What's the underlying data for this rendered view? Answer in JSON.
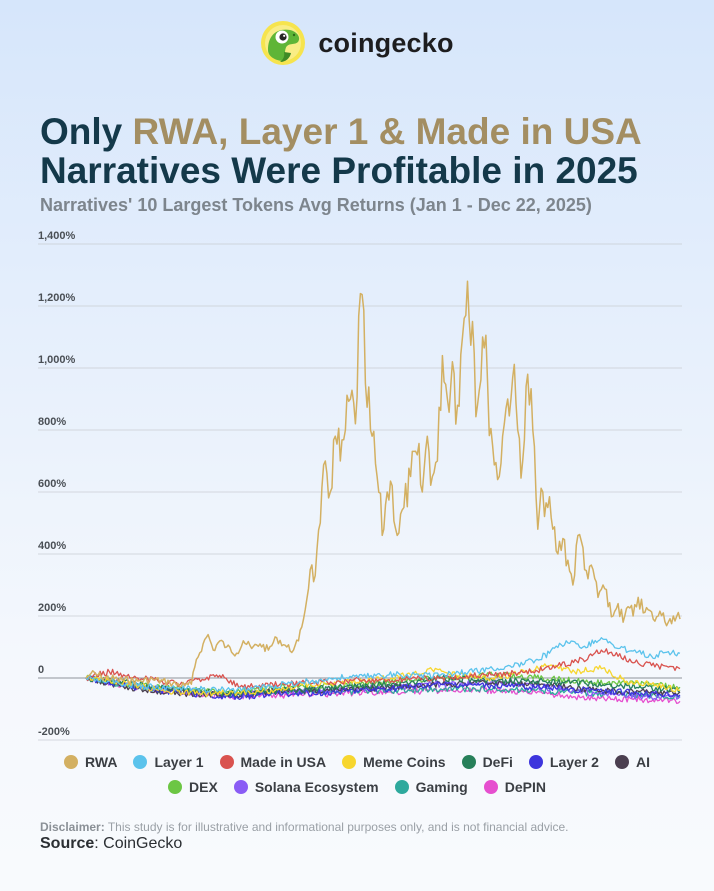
{
  "brand": {
    "name": "coingecko",
    "logo": "gecko-logo-icon"
  },
  "title": {
    "prefix": "Only ",
    "highlight": "RWA, Layer 1 & Made in USA",
    "line2": "Narratives Were Profitable in 2025"
  },
  "footer": {
    "disclaimer_label": "Disclaimer:",
    "disclaimer_text": " This study is for illustrative and informational purposes only, and is not financial advice.",
    "source_label": "Source",
    "source_text": ": CoinGecko"
  },
  "colors": {
    "title": "#14394a",
    "highlight": "#a38e62",
    "subtitle": "#7d858d"
  },
  "chart_data": {
    "type": "line",
    "title": "",
    "subtitle": "Narratives' 10 Largest Tokens Avg Returns (Jan 1 - Dec 22, 2025)",
    "xlabel": "",
    "ylabel": "",
    "ylim": [
      -200,
      1400
    ],
    "yticks": [
      -200,
      0,
      200,
      400,
      600,
      800,
      1000,
      1200,
      1400
    ],
    "ytick_labels": [
      "-200%",
      "0",
      "200%",
      "400%",
      "600%",
      "800%",
      "1,000%",
      "1,200%",
      "1,400%"
    ],
    "xrange": [
      "2025-01-01",
      "2025-12-22"
    ],
    "grid": true,
    "legend_position": "bottom",
    "series": [
      {
        "name": "RWA",
        "color": "#d3b062",
        "points": [
          [
            "2025-01-01",
            0
          ],
          [
            "2025-01-04",
            15
          ],
          [
            "2025-01-10",
            5
          ],
          [
            "2025-01-20",
            -5
          ],
          [
            "2025-02-01",
            -10
          ],
          [
            "2025-02-10",
            -5
          ],
          [
            "2025-02-20",
            -15
          ],
          [
            "2025-03-01",
            -25
          ],
          [
            "2025-03-05",
            -20
          ],
          [
            "2025-03-08",
            60
          ],
          [
            "2025-03-12",
            110
          ],
          [
            "2025-03-15",
            140
          ],
          [
            "2025-03-18",
            90
          ],
          [
            "2025-03-22",
            120
          ],
          [
            "2025-03-26",
            100
          ],
          [
            "2025-04-01",
            80
          ],
          [
            "2025-04-05",
            120
          ],
          [
            "2025-04-10",
            95
          ],
          [
            "2025-04-15",
            110
          ],
          [
            "2025-04-20",
            90
          ],
          [
            "2025-04-25",
            130
          ],
          [
            "2025-05-01",
            100
          ],
          [
            "2025-05-05",
            90
          ],
          [
            "2025-05-08",
            120
          ],
          [
            "2025-05-12",
            220
          ],
          [
            "2025-05-15",
            350
          ],
          [
            "2025-05-18",
            330
          ],
          [
            "2025-05-21",
            500
          ],
          [
            "2025-05-24",
            700
          ],
          [
            "2025-05-27",
            600
          ],
          [
            "2025-05-30",
            780
          ],
          [
            "2025-06-02",
            700
          ],
          [
            "2025-06-05",
            800
          ],
          [
            "2025-06-08",
            900
          ],
          [
            "2025-06-11",
            820
          ],
          [
            "2025-06-14",
            1240
          ],
          [
            "2025-06-17",
            950
          ],
          [
            "2025-06-20",
            800
          ],
          [
            "2025-06-24",
            650
          ],
          [
            "2025-06-27",
            460
          ],
          [
            "2025-06-30",
            600
          ],
          [
            "2025-07-03",
            620
          ],
          [
            "2025-07-06",
            460
          ],
          [
            "2025-07-10",
            550
          ],
          [
            "2025-07-14",
            650
          ],
          [
            "2025-07-18",
            720
          ],
          [
            "2025-07-21",
            600
          ],
          [
            "2025-07-24",
            780
          ],
          [
            "2025-07-27",
            650
          ],
          [
            "2025-07-30",
            700
          ],
          [
            "2025-08-02",
            1040
          ],
          [
            "2025-08-05",
            900
          ],
          [
            "2025-08-08",
            1020
          ],
          [
            "2025-08-11",
            880
          ],
          [
            "2025-08-14",
            1100
          ],
          [
            "2025-08-17",
            1280
          ],
          [
            "2025-08-20",
            1150
          ],
          [
            "2025-08-23",
            880
          ],
          [
            "2025-08-26",
            1100
          ],
          [
            "2025-08-29",
            950
          ],
          [
            "2025-09-01",
            750
          ],
          [
            "2025-09-04",
            640
          ],
          [
            "2025-09-07",
            780
          ],
          [
            "2025-09-10",
            900
          ],
          [
            "2025-09-13",
            970
          ],
          [
            "2025-09-16",
            800
          ],
          [
            "2025-09-19",
            700
          ],
          [
            "2025-09-22",
            980
          ],
          [
            "2025-09-25",
            800
          ],
          [
            "2025-09-28",
            480
          ],
          [
            "2025-10-01",
            600
          ],
          [
            "2025-10-04",
            550
          ],
          [
            "2025-10-07",
            480
          ],
          [
            "2025-10-10",
            400
          ],
          [
            "2025-10-13",
            450
          ],
          [
            "2025-10-16",
            380
          ],
          [
            "2025-10-19",
            300
          ],
          [
            "2025-10-22",
            460
          ],
          [
            "2025-10-25",
            420
          ],
          [
            "2025-10-28",
            320
          ],
          [
            "2025-10-31",
            350
          ],
          [
            "2025-11-03",
            260
          ],
          [
            "2025-11-06",
            300
          ],
          [
            "2025-11-09",
            230
          ],
          [
            "2025-11-12",
            200
          ],
          [
            "2025-11-15",
            240
          ],
          [
            "2025-11-18",
            180
          ],
          [
            "2025-11-21",
            230
          ],
          [
            "2025-11-24",
            200
          ],
          [
            "2025-11-27",
            260
          ],
          [
            "2025-11-30",
            210
          ],
          [
            "2025-12-03",
            220
          ],
          [
            "2025-12-06",
            190
          ],
          [
            "2025-12-09",
            200
          ],
          [
            "2025-12-12",
            210
          ],
          [
            "2025-12-15",
            180
          ],
          [
            "2025-12-18",
            200
          ],
          [
            "2025-12-22",
            190
          ]
        ]
      },
      {
        "name": "Layer 1",
        "color": "#5bc3ec",
        "points": [
          [
            "2025-01-01",
            0
          ],
          [
            "2025-01-15",
            -10
          ],
          [
            "2025-02-01",
            -25
          ],
          [
            "2025-03-01",
            -35
          ],
          [
            "2025-04-01",
            -40
          ],
          [
            "2025-05-01",
            -20
          ],
          [
            "2025-06-01",
            0
          ],
          [
            "2025-07-01",
            10
          ],
          [
            "2025-08-01",
            10
          ],
          [
            "2025-09-01",
            30
          ],
          [
            "2025-09-20",
            45
          ],
          [
            "2025-10-05",
            80
          ],
          [
            "2025-10-15",
            120
          ],
          [
            "2025-10-25",
            100
          ],
          [
            "2025-11-05",
            130
          ],
          [
            "2025-11-15",
            95
          ],
          [
            "2025-11-25",
            90
          ],
          [
            "2025-12-05",
            70
          ],
          [
            "2025-12-15",
            85
          ],
          [
            "2025-12-22",
            80
          ]
        ]
      },
      {
        "name": "Made in USA",
        "color": "#d9534f",
        "points": [
          [
            "2025-01-01",
            0
          ],
          [
            "2025-01-15",
            20
          ],
          [
            "2025-02-01",
            0
          ],
          [
            "2025-03-01",
            -20
          ],
          [
            "2025-03-20",
            10
          ],
          [
            "2025-04-05",
            -30
          ],
          [
            "2025-05-01",
            -20
          ],
          [
            "2025-06-01",
            -10
          ],
          [
            "2025-07-01",
            -5
          ],
          [
            "2025-08-01",
            0
          ],
          [
            "2025-09-01",
            10
          ],
          [
            "2025-09-25",
            20
          ],
          [
            "2025-10-10",
            40
          ],
          [
            "2025-10-25",
            60
          ],
          [
            "2025-11-05",
            90
          ],
          [
            "2025-11-15",
            70
          ],
          [
            "2025-11-25",
            50
          ],
          [
            "2025-12-05",
            40
          ],
          [
            "2025-12-15",
            35
          ],
          [
            "2025-12-22",
            30
          ]
        ]
      },
      {
        "name": "Meme Coins",
        "color": "#f7d62e",
        "points": [
          [
            "2025-01-01",
            0
          ],
          [
            "2025-01-20",
            -10
          ],
          [
            "2025-02-15",
            -40
          ],
          [
            "2025-03-15",
            -50
          ],
          [
            "2025-04-15",
            -45
          ],
          [
            "2025-05-15",
            -20
          ],
          [
            "2025-06-15",
            -10
          ],
          [
            "2025-07-15",
            10
          ],
          [
            "2025-07-25",
            30
          ],
          [
            "2025-08-10",
            10
          ],
          [
            "2025-09-01",
            0
          ],
          [
            "2025-09-20",
            20
          ],
          [
            "2025-10-05",
            40
          ],
          [
            "2025-10-20",
            20
          ],
          [
            "2025-11-05",
            30
          ],
          [
            "2025-11-20",
            -10
          ],
          [
            "2025-12-05",
            -20
          ],
          [
            "2025-12-22",
            -40
          ]
        ]
      },
      {
        "name": "DeFi",
        "color": "#27805a",
        "points": [
          [
            "2025-01-01",
            0
          ],
          [
            "2025-02-01",
            -20
          ],
          [
            "2025-03-01",
            -40
          ],
          [
            "2025-04-01",
            -50
          ],
          [
            "2025-05-01",
            -40
          ],
          [
            "2025-06-01",
            -30
          ],
          [
            "2025-07-01",
            -20
          ],
          [
            "2025-08-01",
            0
          ],
          [
            "2025-09-01",
            -10
          ],
          [
            "2025-10-01",
            -10
          ],
          [
            "2025-11-01",
            -20
          ],
          [
            "2025-12-01",
            -30
          ],
          [
            "2025-12-22",
            -40
          ]
        ]
      },
      {
        "name": "Layer 2",
        "color": "#3d35dd",
        "points": [
          [
            "2025-01-01",
            0
          ],
          [
            "2025-02-01",
            -30
          ],
          [
            "2025-03-01",
            -50
          ],
          [
            "2025-04-01",
            -60
          ],
          [
            "2025-05-01",
            -50
          ],
          [
            "2025-06-01",
            -45
          ],
          [
            "2025-07-01",
            -35
          ],
          [
            "2025-08-01",
            -20
          ],
          [
            "2025-09-01",
            -25
          ],
          [
            "2025-10-01",
            -30
          ],
          [
            "2025-11-01",
            -40
          ],
          [
            "2025-12-01",
            -50
          ],
          [
            "2025-12-22",
            -55
          ]
        ]
      },
      {
        "name": "AI",
        "color": "#4b3f50",
        "points": [
          [
            "2025-01-01",
            0
          ],
          [
            "2025-02-01",
            -35
          ],
          [
            "2025-03-01",
            -50
          ],
          [
            "2025-04-01",
            -55
          ],
          [
            "2025-05-01",
            -40
          ],
          [
            "2025-06-01",
            -40
          ],
          [
            "2025-07-01",
            -30
          ],
          [
            "2025-08-01",
            -20
          ],
          [
            "2025-09-01",
            -15
          ],
          [
            "2025-10-01",
            -20
          ],
          [
            "2025-11-01",
            -40
          ],
          [
            "2025-12-01",
            -45
          ],
          [
            "2025-12-22",
            -45
          ]
        ]
      },
      {
        "name": "DEX",
        "color": "#6cc644",
        "points": [
          [
            "2025-01-01",
            0
          ],
          [
            "2025-02-01",
            -25
          ],
          [
            "2025-03-01",
            -35
          ],
          [
            "2025-04-01",
            -45
          ],
          [
            "2025-05-01",
            -30
          ],
          [
            "2025-06-01",
            -25
          ],
          [
            "2025-07-01",
            -15
          ],
          [
            "2025-08-01",
            0
          ],
          [
            "2025-09-01",
            10
          ],
          [
            "2025-10-01",
            0
          ],
          [
            "2025-11-01",
            -15
          ],
          [
            "2025-12-01",
            -20
          ],
          [
            "2025-12-22",
            -30
          ]
        ]
      },
      {
        "name": "Solana Ecosystem",
        "color": "#8a5cf5",
        "points": [
          [
            "2025-01-01",
            0
          ],
          [
            "2025-02-01",
            -25
          ],
          [
            "2025-03-01",
            -45
          ],
          [
            "2025-04-01",
            -55
          ],
          [
            "2025-05-01",
            -40
          ],
          [
            "2025-06-01",
            -40
          ],
          [
            "2025-07-01",
            -30
          ],
          [
            "2025-08-01",
            -20
          ],
          [
            "2025-09-01",
            -15
          ],
          [
            "2025-10-01",
            -30
          ],
          [
            "2025-11-01",
            -50
          ],
          [
            "2025-12-01",
            -60
          ],
          [
            "2025-12-22",
            -60
          ]
        ]
      },
      {
        "name": "Gaming",
        "color": "#2ea99d",
        "points": [
          [
            "2025-01-01",
            0
          ],
          [
            "2025-02-01",
            -30
          ],
          [
            "2025-03-01",
            -45
          ],
          [
            "2025-04-01",
            -50
          ],
          [
            "2025-05-01",
            -45
          ],
          [
            "2025-06-01",
            -45
          ],
          [
            "2025-07-01",
            -40
          ],
          [
            "2025-08-01",
            -35
          ],
          [
            "2025-09-01",
            -35
          ],
          [
            "2025-10-01",
            -40
          ],
          [
            "2025-11-01",
            -50
          ],
          [
            "2025-12-01",
            -55
          ],
          [
            "2025-12-22",
            -60
          ]
        ]
      },
      {
        "name": "DePIN",
        "color": "#e64fcf",
        "points": [
          [
            "2025-01-01",
            0
          ],
          [
            "2025-02-01",
            -30
          ],
          [
            "2025-03-01",
            -50
          ],
          [
            "2025-04-01",
            -60
          ],
          [
            "2025-05-01",
            -55
          ],
          [
            "2025-06-01",
            -50
          ],
          [
            "2025-07-01",
            -45
          ],
          [
            "2025-08-01",
            -40
          ],
          [
            "2025-09-01",
            -40
          ],
          [
            "2025-10-01",
            -50
          ],
          [
            "2025-11-01",
            -65
          ],
          [
            "2025-12-01",
            -70
          ],
          [
            "2025-12-22",
            -75
          ]
        ]
      }
    ]
  }
}
